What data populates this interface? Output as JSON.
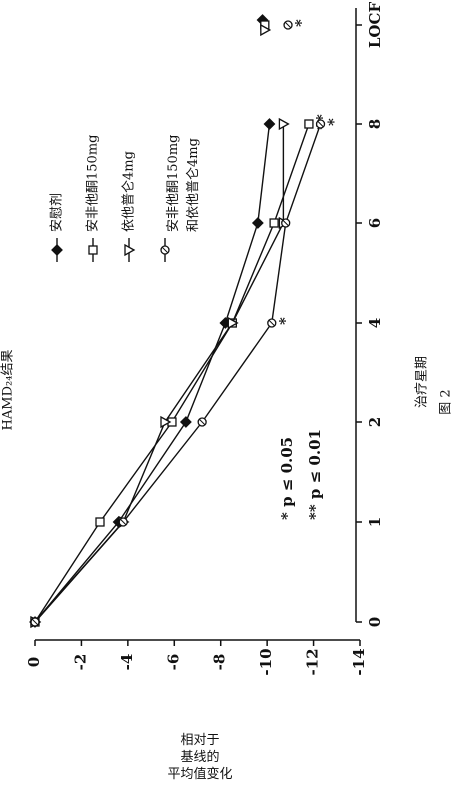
{
  "chart_data": {
    "type": "line",
    "title": "HAMD₂₄结果",
    "x_label": "治疗星期",
    "y_label": "相对于\n基线的\n平均值变化",
    "figure_label": "图 2",
    "categories": [
      "0",
      "1",
      "2",
      "4",
      "6",
      "8",
      "LOCF"
    ],
    "ylim": [
      0,
      -14
    ],
    "yticks": [
      0,
      -2,
      -4,
      -6,
      -8,
      -10,
      -12,
      -14
    ],
    "annotations": [
      "*  p ≤ 0.05",
      "**  p ≤ 0.01"
    ],
    "series": [
      {
        "name": "安慰剂",
        "marker": "diamond",
        "color": "#111111",
        "values": [
          0,
          -3.6,
          -6.5,
          -8.2,
          -9.6,
          -10.1,
          -9.8
        ],
        "significance": [
          null,
          null,
          null,
          null,
          null,
          null,
          null
        ]
      },
      {
        "name": "安非他酮150mg",
        "marker": "square",
        "color": "#111111",
        "values": [
          0,
          -2.8,
          -5.9,
          -8.5,
          -10.3,
          -11.8,
          -9.9
        ],
        "significance": [
          null,
          null,
          null,
          null,
          null,
          "**",
          null
        ]
      },
      {
        "name": "依他普仑4mg",
        "marker": "triangle",
        "color": "#111111",
        "values": [
          0,
          -3.8,
          -5.6,
          -8.5,
          -10.7,
          -10.7,
          -9.9
        ],
        "significance": [
          null,
          null,
          null,
          null,
          null,
          null,
          null
        ]
      },
      {
        "name": "安非他酮150mg\n和依他普仑4mg",
        "marker": "circle",
        "color": "#111111",
        "values": [
          0,
          -3.8,
          -7.2,
          -10.2,
          -10.8,
          -12.3,
          -10.9
        ],
        "significance": [
          null,
          null,
          null,
          "*",
          null,
          "*",
          "*"
        ]
      }
    ]
  }
}
